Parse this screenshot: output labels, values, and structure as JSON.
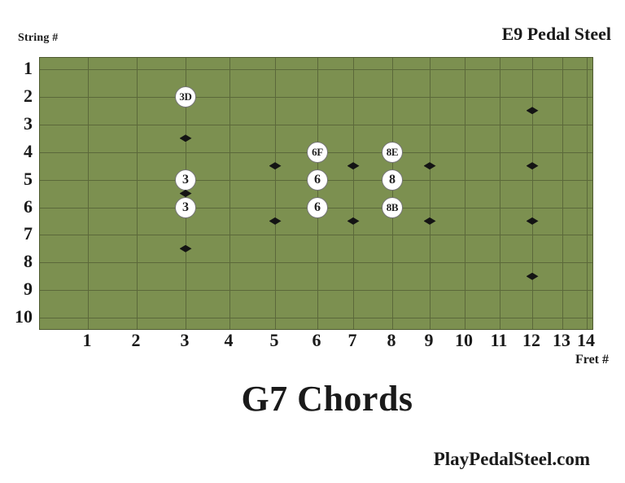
{
  "header": {
    "string_axis_label": "String #",
    "instrument_label": "E9 Pedal Steel"
  },
  "board": {
    "string_numbers": [
      "1",
      "2",
      "3",
      "4",
      "5",
      "6",
      "7",
      "8",
      "9",
      "10"
    ],
    "fret_numbers": [
      "1",
      "2",
      "3",
      "4",
      "5",
      "6",
      "7",
      "8",
      "9",
      "10",
      "11",
      "12",
      "13",
      "14"
    ],
    "fret_axis_label": "Fret #",
    "colors": {
      "board_fill": "#7C9050",
      "board_border": "#4E5A31",
      "grid_line": "#5B683A",
      "chord_circle_fill": "#FFFFFF",
      "chord_circle_border": "#757575",
      "chord_text": "#1F1F1F",
      "diamond": "#141414"
    },
    "chords": [
      {
        "label": "3D",
        "fret": 3,
        "string": 2
      },
      {
        "label": "3",
        "fret": 3,
        "string": 5
      },
      {
        "label": "3",
        "fret": 3,
        "string": 6
      },
      {
        "label": "6F",
        "fret": 6,
        "string": 4
      },
      {
        "label": "6",
        "fret": 6,
        "string": 5
      },
      {
        "label": "6",
        "fret": 6,
        "string": 6
      },
      {
        "label": "8E",
        "fret": 8,
        "string": 4
      },
      {
        "label": "8",
        "fret": 8,
        "string": 5
      },
      {
        "label": "8B",
        "fret": 8,
        "string": 6
      }
    ],
    "fret_markers": [
      {
        "fret": 3,
        "string": 3.5
      },
      {
        "fret": 3,
        "string": 5.5
      },
      {
        "fret": 3,
        "string": 7.5
      },
      {
        "fret": 5,
        "string": 4.5
      },
      {
        "fret": 5,
        "string": 6.5
      },
      {
        "fret": 7,
        "string": 4.5
      },
      {
        "fret": 7,
        "string": 6.5
      },
      {
        "fret": 9,
        "string": 4.5
      },
      {
        "fret": 9,
        "string": 6.5
      },
      {
        "fret": 12,
        "string": 2.5
      },
      {
        "fret": 12,
        "string": 4.5
      },
      {
        "fret": 12,
        "string": 6.5
      },
      {
        "fret": 12,
        "string": 8.5
      }
    ]
  },
  "footer": {
    "title": "G7 Chords",
    "website": "PlayPedalSteel.com"
  }
}
